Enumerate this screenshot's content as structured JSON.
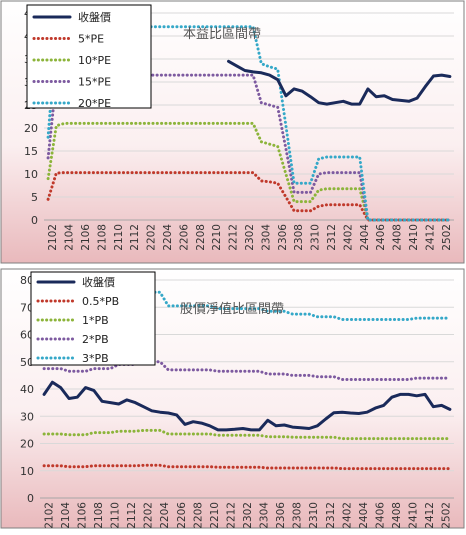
{
  "colors": {
    "close": "#1a2a5a",
    "pe5": "#c0392b",
    "pe10": "#8cb43a",
    "pe15": "#7d5aa0",
    "pe20": "#35a8c8",
    "bg_top": "#ffffff",
    "bg_bottom": "#e9b9bc",
    "grid": "#d9d9d9",
    "border": "#7f7f7f"
  },
  "chart_data": [
    {
      "type": "line",
      "title": "本益比區間帶",
      "x_tick_labels": [
        "2102",
        "2104",
        "2106",
        "2108",
        "2110",
        "2112",
        "2202",
        "2204",
        "2206",
        "2208",
        "2210",
        "2212",
        "2302",
        "2304",
        "2306",
        "2308",
        "2310",
        "2312",
        "2402",
        "2404",
        "2406",
        "2408",
        "2410",
        "2412",
        "2502"
      ],
      "y_ticks": [
        "0",
        "5",
        "10",
        "15",
        "20",
        "25",
        "30",
        "35",
        "40",
        "45"
      ],
      "ylim": [
        0,
        45
      ],
      "x_points": 50,
      "gridlines": "horizontal",
      "legend_position": "top-left",
      "series": [
        {
          "name": "收盤價",
          "color_key": "close",
          "values": [
            null,
            null,
            null,
            null,
            null,
            null,
            null,
            null,
            null,
            null,
            null,
            null,
            null,
            null,
            null,
            null,
            null,
            null,
            null,
            null,
            null,
            null,
            34.5,
            33.5,
            32.5,
            32.2,
            32.0,
            31.5,
            30.5,
            27.0,
            28.5,
            28.0,
            26.8,
            25.5,
            25.2,
            25.5,
            25.8,
            25.2,
            25.2,
            28.5,
            26.8,
            27.0,
            26.2,
            26.0,
            25.8,
            26.5,
            29.0,
            31.3,
            31.5,
            31.2
          ]
        },
        {
          "name": "5*PE",
          "color_key": "pe5",
          "values": [
            4.5,
            10.2,
            10.3,
            10.3,
            10.3,
            10.3,
            10.3,
            10.3,
            10.3,
            10.3,
            10.3,
            10.3,
            10.3,
            10.3,
            10.3,
            10.3,
            10.3,
            10.3,
            10.3,
            10.3,
            10.3,
            10.3,
            10.3,
            10.3,
            10.3,
            10.3,
            8.5,
            8.3,
            8.0,
            5.0,
            2.0,
            2.0,
            2.0,
            3.0,
            3.3,
            3.3,
            3.3,
            3.3,
            3.3,
            0,
            0,
            0,
            0,
            0,
            0,
            0,
            0,
            0,
            0,
            0
          ]
        },
        {
          "name": "10*PE",
          "color_key": "pe10",
          "values": [
            9.0,
            20.5,
            21.0,
            21.0,
            21.0,
            21.0,
            21.0,
            21.0,
            21.0,
            21.0,
            21.0,
            21.0,
            21.0,
            21.0,
            21.0,
            21.0,
            21.0,
            21.0,
            21.0,
            21.0,
            21.0,
            21.0,
            21.0,
            21.0,
            21.0,
            21.0,
            17.0,
            16.5,
            16.0,
            10.0,
            4.0,
            4.0,
            4.0,
            6.5,
            6.8,
            6.8,
            6.8,
            6.8,
            6.8,
            0,
            0,
            0,
            0,
            0,
            0,
            0,
            0,
            0,
            0,
            0
          ]
        },
        {
          "name": "15*PE",
          "color_key": "pe15",
          "values": [
            13.5,
            30.5,
            31.5,
            31.5,
            31.5,
            31.5,
            31.5,
            31.5,
            31.5,
            31.5,
            31.5,
            31.5,
            31.5,
            31.5,
            31.5,
            31.5,
            31.5,
            31.5,
            31.5,
            31.5,
            31.5,
            31.5,
            31.5,
            31.5,
            31.5,
            31.5,
            25.5,
            25.0,
            24.5,
            15.5,
            6.0,
            6.0,
            6.0,
            10.0,
            10.3,
            10.3,
            10.3,
            10.3,
            10.3,
            0,
            0,
            0,
            0,
            0,
            0,
            0,
            0,
            0,
            0,
            0
          ]
        },
        {
          "name": "20*PE",
          "color_key": "pe20",
          "values": [
            18.0,
            41.0,
            42.0,
            42.0,
            42.0,
            42.0,
            42.0,
            42.0,
            42.0,
            42.0,
            42.0,
            42.0,
            42.0,
            42.0,
            42.0,
            42.0,
            42.0,
            42.0,
            42.0,
            42.0,
            42.0,
            42.0,
            42.0,
            42.0,
            42.0,
            42.0,
            34.0,
            33.3,
            32.8,
            20.5,
            8.0,
            8.0,
            8.0,
            13.3,
            13.7,
            13.7,
            13.7,
            13.7,
            13.7,
            0,
            0,
            0,
            0,
            0,
            0,
            0,
            0,
            0,
            0,
            0
          ]
        }
      ]
    },
    {
      "type": "line",
      "title": "股價淨值比區間帶",
      "x_tick_labels": [
        "2102",
        "2104",
        "2106",
        "2108",
        "2110",
        "2112",
        "2202",
        "2204",
        "2206",
        "2208",
        "2210",
        "2212",
        "2302",
        "2304",
        "2306",
        "2308",
        "2310",
        "2312",
        "2402",
        "2404",
        "2406",
        "2408",
        "2410",
        "2412",
        "2502"
      ],
      "y_ticks": [
        "0",
        "10",
        "20",
        "30",
        "40",
        "50",
        "60",
        "70",
        "80"
      ],
      "ylim": [
        0,
        80
      ],
      "x_points": 50,
      "gridlines": "horizontal",
      "legend_position": "top-left",
      "series": [
        {
          "name": "收盤價",
          "color_key": "close",
          "values": [
            38.0,
            42.5,
            40.5,
            36.5,
            37.0,
            40.5,
            39.5,
            35.5,
            35.0,
            34.5,
            36.0,
            35.0,
            33.5,
            32.0,
            31.5,
            31.2,
            30.5,
            27.0,
            28.0,
            27.5,
            26.5,
            25.0,
            25.0,
            25.2,
            25.5,
            25.0,
            25.0,
            28.5,
            26.5,
            26.8,
            26.0,
            25.8,
            25.5,
            26.5,
            29.0,
            31.3,
            31.5,
            31.2,
            31.0,
            31.5,
            33.0,
            34.0,
            37.0,
            38.0,
            38.0,
            37.5,
            38.0,
            33.5,
            34.0,
            32.5
          ]
        },
        {
          "name": "0.5*PB",
          "color_key": "pe5",
          "values": [
            11.8,
            11.8,
            11.8,
            11.5,
            11.5,
            11.5,
            11.8,
            11.8,
            11.8,
            11.8,
            11.8,
            11.8,
            12.0,
            12.0,
            12.0,
            11.5,
            11.5,
            11.5,
            11.5,
            11.5,
            11.5,
            11.3,
            11.3,
            11.3,
            11.3,
            11.3,
            11.3,
            11.0,
            11.0,
            11.0,
            11.0,
            11.0,
            11.0,
            11.0,
            11.0,
            11.0,
            10.8,
            10.8,
            10.8,
            10.8,
            10.8,
            10.8,
            10.8,
            10.8,
            10.8,
            10.8,
            10.8,
            10.8,
            10.8,
            10.8
          ]
        },
        {
          "name": "1*PB",
          "color_key": "pe10",
          "values": [
            23.5,
            23.5,
            23.5,
            23.2,
            23.2,
            23.2,
            24.0,
            24.0,
            24.0,
            24.5,
            24.5,
            24.5,
            24.8,
            24.8,
            24.8,
            23.5,
            23.5,
            23.5,
            23.5,
            23.5,
            23.5,
            23.0,
            23.0,
            23.0,
            23.0,
            23.0,
            23.0,
            22.5,
            22.5,
            22.5,
            22.3,
            22.3,
            22.3,
            22.3,
            22.3,
            22.3,
            21.8,
            21.8,
            21.8,
            21.8,
            21.8,
            21.8,
            21.8,
            21.8,
            21.8,
            21.8,
            21.8,
            21.8,
            21.8,
            21.8
          ]
        },
        {
          "name": "2*PB",
          "color_key": "pe15",
          "values": [
            47.5,
            47.5,
            47.5,
            46.5,
            46.5,
            46.5,
            47.5,
            47.5,
            47.5,
            49.0,
            49.0,
            49.0,
            50.0,
            50.0,
            50.0,
            47.0,
            47.0,
            47.0,
            47.0,
            47.0,
            47.0,
            46.5,
            46.5,
            46.5,
            46.5,
            46.5,
            46.5,
            45.5,
            45.5,
            45.5,
            45.0,
            45.0,
            45.0,
            44.5,
            44.5,
            44.5,
            43.5,
            43.5,
            43.5,
            43.5,
            43.5,
            43.5,
            43.5,
            43.5,
            43.5,
            44.0,
            44.0,
            44.0,
            44.0,
            44.0
          ]
        },
        {
          "name": "3*PB",
          "color_key": "pe20",
          "values": [
            70.5,
            70.5,
            70.5,
            69.5,
            69.5,
            69.5,
            71.5,
            71.5,
            71.5,
            73.5,
            73.5,
            73.5,
            75.5,
            75.5,
            75.5,
            70.5,
            70.5,
            70.5,
            70.5,
            70.5,
            70.5,
            69.5,
            69.5,
            69.5,
            69.5,
            69.5,
            69.5,
            68.5,
            68.5,
            68.5,
            67.5,
            67.5,
            67.5,
            66.5,
            66.5,
            66.5,
            65.5,
            65.5,
            65.5,
            65.5,
            65.5,
            65.5,
            65.5,
            65.5,
            65.5,
            66.0,
            66.0,
            66.0,
            66.0,
            66.0
          ]
        }
      ]
    }
  ]
}
